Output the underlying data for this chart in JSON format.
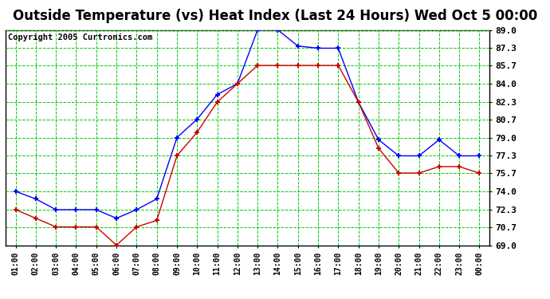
{
  "title": "Outside Temperature (vs) Heat Index (Last 24 Hours) Wed Oct 5 00:00",
  "copyright": "Copyright 2005 Curtronics.com",
  "x_labels": [
    "01:00",
    "02:00",
    "03:00",
    "04:00",
    "05:00",
    "06:00",
    "07:00",
    "08:00",
    "09:00",
    "10:00",
    "11:00",
    "12:00",
    "13:00",
    "14:00",
    "15:00",
    "16:00",
    "17:00",
    "18:00",
    "19:00",
    "20:00",
    "21:00",
    "22:00",
    "23:00",
    "00:00"
  ],
  "blue_data": [
    74.0,
    73.3,
    72.3,
    72.3,
    72.3,
    71.5,
    72.3,
    73.3,
    79.0,
    80.7,
    83.0,
    84.0,
    89.0,
    89.0,
    87.5,
    87.3,
    87.3,
    82.3,
    78.8,
    77.3,
    77.3,
    78.8,
    77.3,
    77.3
  ],
  "red_data": [
    72.3,
    71.5,
    70.7,
    70.7,
    70.7,
    69.0,
    70.7,
    71.3,
    77.3,
    79.5,
    82.3,
    84.0,
    85.7,
    85.7,
    85.7,
    85.7,
    85.7,
    82.3,
    78.0,
    75.7,
    75.7,
    76.3,
    76.3,
    75.7
  ],
  "ylim": [
    69.0,
    89.0
  ],
  "yticks": [
    69.0,
    70.7,
    72.3,
    74.0,
    75.7,
    77.3,
    79.0,
    80.7,
    82.3,
    84.0,
    85.7,
    87.3,
    89.0
  ],
  "bg_color": "#ffffff",
  "plot_bg": "#ffffff",
  "grid_color": "#00cc00",
  "blue_color": "#0000ff",
  "red_color": "#cc0000",
  "title_fontsize": 12,
  "copyright_fontsize": 7.5
}
